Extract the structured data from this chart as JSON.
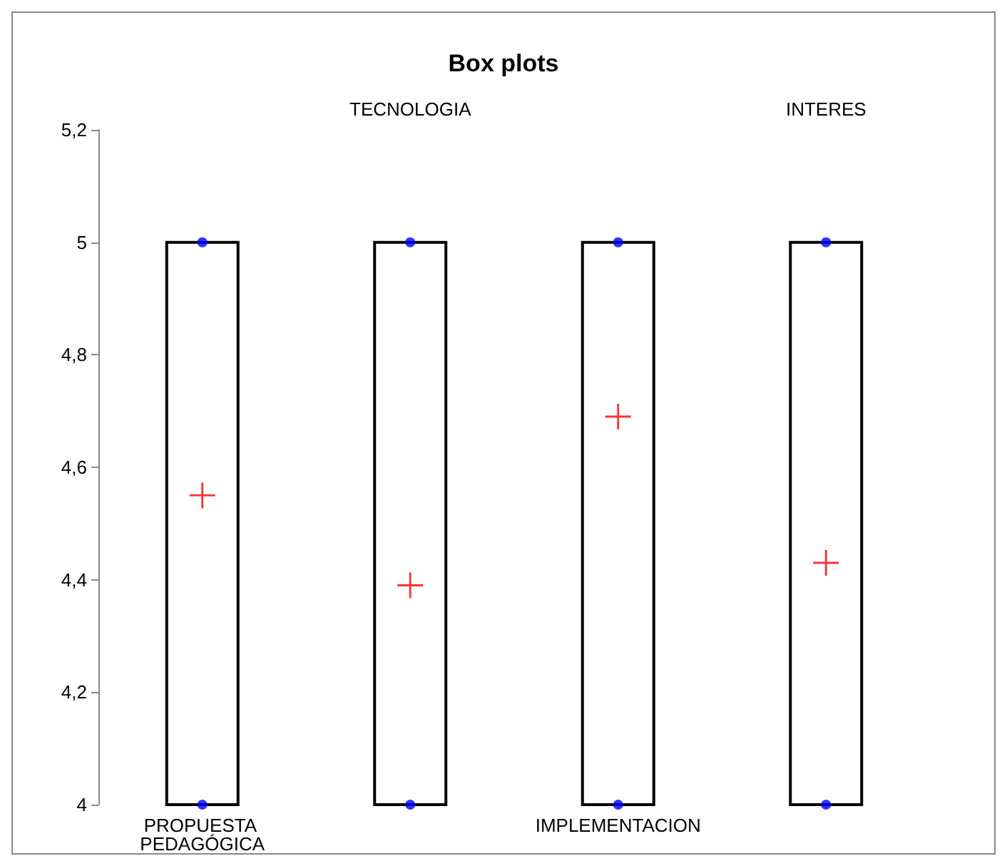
{
  "chart_data": {
    "type": "box",
    "title": "Box plots",
    "categories": [
      "PROPUESTA PEDAGÓGICA",
      "TECNOLOGIA",
      "IMPLEMENTACION",
      "INTERES"
    ],
    "boxes": [
      {
        "low": 4,
        "q1": 4,
        "median": 5,
        "q3": 5,
        "high": 5
      },
      {
        "low": 4,
        "q1": 4,
        "median": 4,
        "q3": 5,
        "high": 5
      },
      {
        "low": 4,
        "q1": 4,
        "median": 5,
        "q3": 5,
        "high": 5
      },
      {
        "low": 4,
        "q1": 4,
        "median": 4,
        "q3": 5,
        "high": 5
      }
    ],
    "color": "#000000",
    "series": [
      {
        "type": "scatter",
        "color": "#0000ff",
        "marker": "circle",
        "x": [
          "PROPUESTA PEDAGÓGICA",
          "PROPUESTA PEDAGÓGICA",
          "TECNOLOGIA",
          "TECNOLOGIA",
          "IMPLEMENTACION",
          "IMPLEMENTACION",
          "INTERES",
          "INTERES"
        ],
        "values": [
          4,
          5,
          4,
          5,
          4,
          5,
          4,
          5
        ]
      },
      {
        "type": "scatter",
        "color": "#ff0000",
        "marker": "cross",
        "x": [
          "PROPUESTA PEDAGÓGICA",
          "TECNOLOGIA",
          "IMPLEMENTACION",
          "INTERES"
        ],
        "values": [
          4.55,
          4.39,
          4.69,
          4.43
        ]
      }
    ],
    "ylim": [
      4,
      5.2
    ],
    "yticks": [
      {
        "value": 4,
        "label": "4"
      },
      {
        "value": 4.2,
        "label": "4,2"
      },
      {
        "value": 4.4,
        "label": "4,4"
      },
      {
        "value": 4.6,
        "label": "4,6"
      },
      {
        "value": 4.8,
        "label": "4,8"
      },
      {
        "value": 5,
        "label": "5"
      },
      {
        "value": 5.2,
        "label": "5,2"
      }
    ],
    "grid": false
  }
}
